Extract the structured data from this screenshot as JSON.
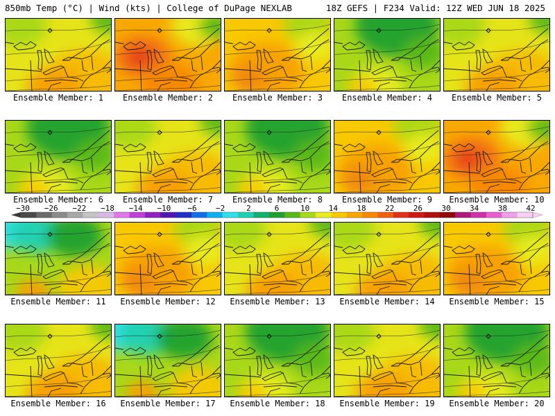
{
  "header": {
    "left": "850mb Temp (°C) | Wind (kts) | College of DuPage NEXLAB",
    "right": "18Z GEFS | F234 Valid: 12Z WED JUN 18 2025"
  },
  "colorbar": {
    "labels": [
      "−30",
      "−26",
      "−22",
      "−18",
      "−14",
      "−10",
      "−6",
      "−2",
      "2",
      "6",
      "10",
      "14",
      "18",
      "22",
      "26",
      "30",
      "34",
      "38",
      "42"
    ],
    "colors": [
      "#4a4a4a",
      "#6a6a6a",
      "#8a8a8a",
      "#a8a8a8",
      "#c4c4c4",
      "#d8b8e8",
      "#e078e8",
      "#c040d8",
      "#9020c0",
      "#5018b0",
      "#2030c8",
      "#1070e8",
      "#10b0f0",
      "#30e0e8",
      "#20d0b0",
      "#10b070",
      "#20a030",
      "#58b818",
      "#a8d818",
      "#e8ec20",
      "#f8c800",
      "#f8a800",
      "#f88800",
      "#f06010",
      "#e03018",
      "#d01818",
      "#b01010",
      "#900808",
      "#b01878",
      "#d030a8",
      "#e860d0",
      "#f0a0e8",
      "#f8d0f0"
    ]
  },
  "colors": {
    "outline": "#1a1a1a"
  },
  "members": [
    {
      "label": "Ensemble Member: 1",
      "scheme": "yellow"
    },
    {
      "label": "Ensemble Member: 2",
      "scheme": "hot"
    },
    {
      "label": "Ensemble Member: 3",
      "scheme": "warm"
    },
    {
      "label": "Ensemble Member: 4",
      "scheme": "green"
    },
    {
      "label": "Ensemble Member: 5",
      "scheme": "yellow"
    },
    {
      "label": "Ensemble Member: 6",
      "scheme": "green"
    },
    {
      "label": "Ensemble Member: 7",
      "scheme": "yellow"
    },
    {
      "label": "Ensemble Member: 8",
      "scheme": "green"
    },
    {
      "label": "Ensemble Member: 9",
      "scheme": "warm"
    },
    {
      "label": "Ensemble Member: 10",
      "scheme": "hot"
    },
    {
      "label": "Ensemble Member: 11",
      "scheme": "cyan"
    },
    {
      "label": "Ensemble Member: 12",
      "scheme": "warm"
    },
    {
      "label": "Ensemble Member: 13",
      "scheme": "yellow"
    },
    {
      "label": "Ensemble Member: 14",
      "scheme": "yellow"
    },
    {
      "label": "Ensemble Member: 15",
      "scheme": "warm"
    },
    {
      "label": "Ensemble Member: 16",
      "scheme": "yellow"
    },
    {
      "label": "Ensemble Member: 17",
      "scheme": "cyan"
    },
    {
      "label": "Ensemble Member: 18",
      "scheme": "green"
    },
    {
      "label": "Ensemble Member: 19",
      "scheme": "yellow"
    },
    {
      "label": "Ensemble Member: 20",
      "scheme": "green"
    }
  ]
}
